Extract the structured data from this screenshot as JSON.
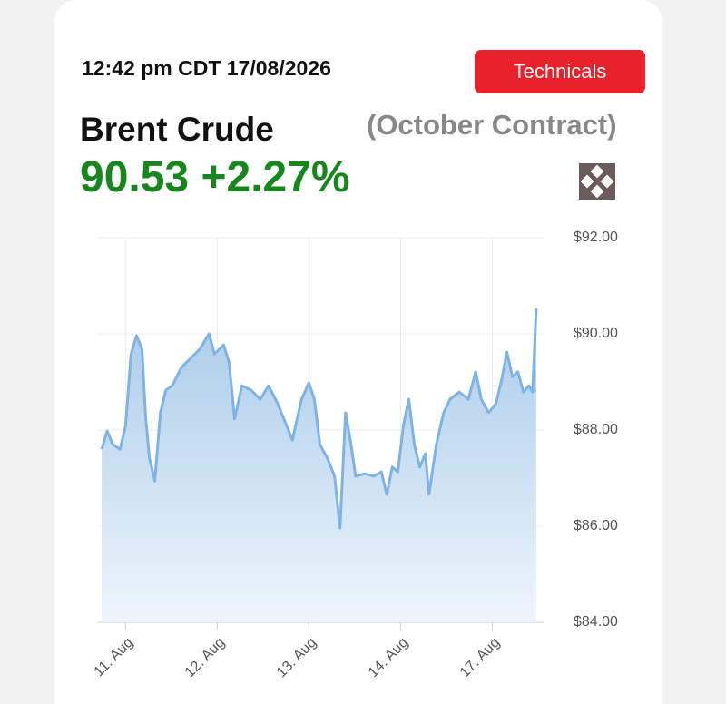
{
  "header": {
    "timestamp": "12:42 pm CDT 17/08/2026",
    "button": "Technicals",
    "title": "Brent Crude",
    "subtitle": "(October Contract)",
    "price": "90.53",
    "change": "+2.27%"
  },
  "chart_data": {
    "type": "area",
    "xlim": [
      -0.31,
      4.57
    ],
    "xticks": [
      {
        "value": 0,
        "label": "11. Aug"
      },
      {
        "value": 1,
        "label": "12. Aug"
      },
      {
        "value": 2,
        "label": "13. Aug"
      },
      {
        "value": 3,
        "label": "14. Aug"
      },
      {
        "value": 4,
        "label": "17. Aug"
      }
    ],
    "ylim": [
      84,
      92
    ],
    "yticks": [
      {
        "value": 84,
        "label": "$84.00"
      },
      {
        "value": 86,
        "label": "$86.00"
      },
      {
        "value": 88,
        "label": "$88.00"
      },
      {
        "value": 90,
        "label": "$90.00"
      },
      {
        "value": 92,
        "label": "$92.00"
      }
    ],
    "grid": true,
    "x": [
      -0.26,
      -0.2,
      -0.14,
      -0.06,
      0,
      0.06,
      0.12,
      0.18,
      0.22,
      0.26,
      0.32,
      0.38,
      0.44,
      0.51,
      0.61,
      0.71,
      0.81,
      0.91,
      0.97,
      1.07,
      1.13,
      1.19,
      1.27,
      1.37,
      1.47,
      1.56,
      1.66,
      1.76,
      1.82,
      1.92,
      2.0,
      2.06,
      2.12,
      2.2,
      2.28,
      2.34,
      2.4,
      2.46,
      2.51,
      2.61,
      2.71,
      2.79,
      2.85,
      2.91,
      2.97,
      3.03,
      3.09,
      3.15,
      3.21,
      3.27,
      3.31,
      3.39,
      3.47,
      3.54,
      3.64,
      3.74,
      3.82,
      3.88,
      3.96,
      4.04,
      4.1,
      4.16,
      4.22,
      4.28,
      4.34,
      4.4,
      4.44,
      4.48
    ],
    "series": [
      {
        "color": "#7fb3e6",
        "values": [
          87.6,
          87.98,
          87.7,
          87.6,
          88.08,
          89.58,
          89.96,
          89.68,
          88.26,
          87.42,
          86.94,
          88.36,
          88.83,
          88.92,
          89.3,
          89.49,
          89.68,
          90.0,
          89.58,
          89.77,
          89.4,
          88.23,
          88.92,
          88.83,
          88.64,
          88.92,
          88.55,
          88.08,
          87.79,
          88.64,
          88.98,
          88.64,
          87.7,
          87.42,
          87.04,
          85.96,
          88.36,
          87.7,
          87.04,
          87.09,
          87.04,
          87.13,
          86.66,
          87.23,
          87.13,
          88.08,
          88.64,
          87.7,
          87.23,
          87.51,
          86.66,
          87.7,
          88.36,
          88.64,
          88.79,
          88.64,
          89.21,
          88.64,
          88.36,
          88.55,
          89.02,
          89.62,
          89.11,
          89.21,
          88.79,
          88.92,
          88.79,
          90.53
        ]
      }
    ]
  }
}
